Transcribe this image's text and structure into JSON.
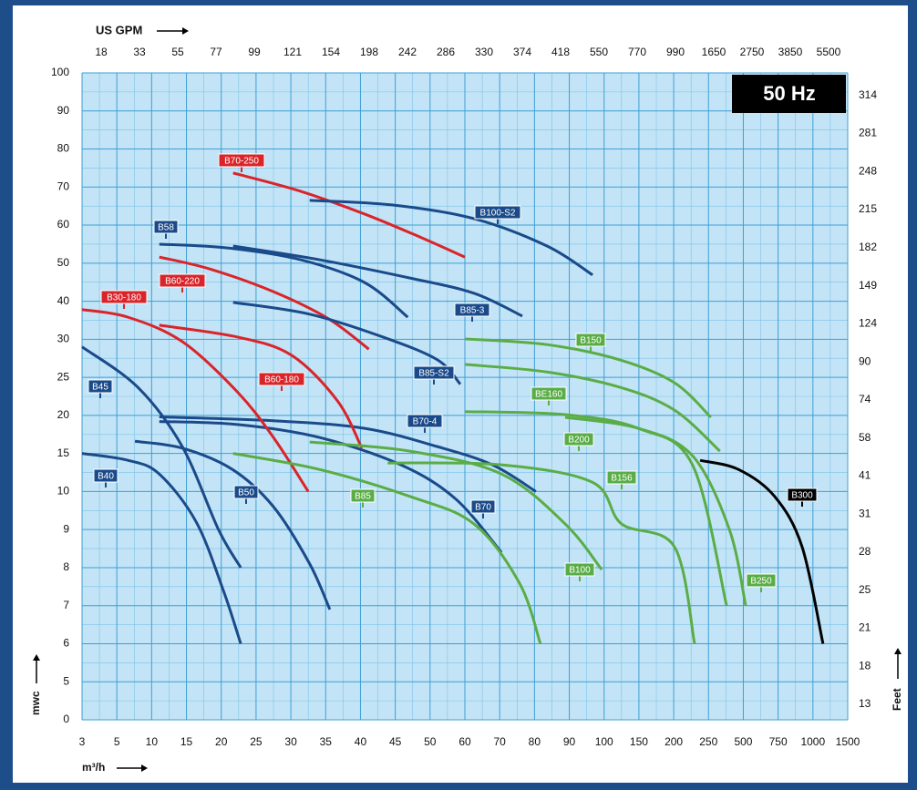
{
  "chart_data": {
    "type": "line",
    "x_label": "m³/h",
    "y_label": "mwc",
    "x2_label": "US GPM",
    "y2_label": "Feet",
    "badge": "50 Hz",
    "xlim": [
      3,
      1500
    ],
    "xticks": [
      3,
      5,
      10,
      15,
      20,
      25,
      30,
      35,
      40,
      45,
      50,
      60,
      70,
      80,
      90,
      100,
      150,
      200,
      250,
      500,
      750,
      1000,
      1500
    ],
    "ylim": [
      0,
      100
    ],
    "yticks": [
      0,
      5,
      6,
      7,
      8,
      9,
      10,
      15,
      20,
      25,
      30,
      40,
      50,
      60,
      70,
      80,
      90,
      100
    ],
    "x2ticks": [
      18,
      33,
      55,
      77,
      99,
      121,
      154,
      198,
      242,
      286,
      330,
      374,
      418,
      550,
      770,
      990,
      1650,
      2750,
      3850,
      5500
    ],
    "y2ticks": [
      13,
      18,
      21,
      25,
      28,
      31,
      41,
      58,
      74,
      90,
      124,
      149,
      182,
      215,
      248,
      281,
      314
    ],
    "grid": true,
    "series": [
      {
        "name": "B45",
        "color": "#1a4a8a",
        "x": [
          3,
          8,
          14.4,
          19.6,
          22.8
        ],
        "values": [
          29,
          23.7,
          15.9,
          9,
          8
        ]
      },
      {
        "name": "B40",
        "color": "#1a4a8a",
        "x": [
          3,
          6.6,
          11.1,
          16.4,
          20.3,
          22.8
        ],
        "values": [
          15,
          14.1,
          12.3,
          9.2,
          7.4,
          6
        ]
      },
      {
        "name": "B50",
        "color": "#1a4a8a",
        "x": [
          7.6,
          14.4,
          21.6,
          27.5,
          32.7,
          35.6
        ],
        "values": [
          16.6,
          15.7,
          12.9,
          9.6,
          8.1,
          6.9
        ]
      },
      {
        "name": "B70-4",
        "color": "#1a4a8a",
        "x": [
          11.1,
          27.5,
          40.6,
          52.1,
          67.9,
          80.4
        ],
        "values": [
          19.8,
          19.3,
          18.3,
          15.9,
          13.5,
          10
        ]
      },
      {
        "name": "B70",
        "color": "#1a4a8a",
        "x": [
          11.1,
          22.3,
          34.1,
          45.8,
          57.4,
          70.5
        ],
        "values": [
          19.2,
          18.8,
          17.1,
          13.5,
          9.8,
          8.4
        ]
      },
      {
        "name": "B60-180",
        "color": "#d9252a",
        "x": [
          11.1,
          22.3,
          30.1,
          36.7,
          40.2
        ],
        "values": [
          33.7,
          30.6,
          27.9,
          21.9,
          15.7
        ]
      },
      {
        "name": "B30-180",
        "color": "#d9252a",
        "x": [
          3,
          6.6,
          14.4,
          22.3,
          27.5,
          32.5
        ],
        "values": [
          37.8,
          35.8,
          29.7,
          23.1,
          17.1,
          10
        ]
      },
      {
        "name": "B60-220",
        "color": "#d9252a",
        "x": [
          11.1,
          18.3,
          27.5,
          35.4,
          41.2
        ],
        "values": [
          51.6,
          48.5,
          42.5,
          35.4,
          28.7
        ]
      },
      {
        "name": "B58",
        "color": "#1a4a8a",
        "x": [
          11.1,
          20.9,
          31.4,
          40.6,
          46.8
        ],
        "values": [
          55,
          54,
          50.9,
          44.9,
          35.8
        ]
      },
      {
        "name": "B70-250",
        "color": "#d9252a",
        "x": [
          21.7,
          31.4,
          40.6,
          48.5,
          60
        ],
        "values": [
          73.7,
          68.9,
          62.9,
          56.9,
          51.6
        ]
      },
      {
        "name": "B100-S2",
        "color": "#1a4a8a",
        "x": [
          32.7,
          44.5,
          62.6,
          83.6,
          96.7
        ],
        "values": [
          66.5,
          65.3,
          61.7,
          54.5,
          46.9
        ]
      },
      {
        "name": "B85-3",
        "color": "#1a4a8a",
        "x": [
          21.7,
          34.1,
          47.1,
          62.6,
          76.5
        ],
        "values": [
          54.5,
          50.9,
          46.1,
          42.1,
          36.1
        ]
      },
      {
        "name": "B85-S2",
        "color": "#1a4a8a",
        "x": [
          21.7,
          32.7,
          43.2,
          52.1,
          58.7
        ],
        "values": [
          39.7,
          36.6,
          30.6,
          27.3,
          24.1
        ]
      },
      {
        "name": "B150",
        "color": "#5aad46",
        "x": [
          60,
          83.6,
          122.5,
          201,
          267
        ],
        "values": [
          30.1,
          29.3,
          27.3,
          24.3,
          19.75
        ]
      },
      {
        "name": "BE160",
        "color": "#5aad46",
        "x": [
          60,
          83.6,
          122.5,
          201,
          332
        ],
        "values": [
          26.7,
          25.7,
          23.7,
          20.7,
          15.3
        ]
      },
      {
        "name": "B200",
        "color": "#5aad46",
        "x": [
          60,
          88.8,
          149,
          227,
          380
        ],
        "values": [
          20.5,
          20.1,
          18.3,
          13.5,
          7
        ]
      },
      {
        "name": "B250",
        "color": "#5aad46",
        "x": [
          88.8,
          149,
          227,
          400,
          517
        ],
        "values": [
          19.75,
          18.3,
          14.7,
          9,
          7
        ]
      },
      {
        "name": "B156",
        "color": "#5aad46",
        "x": [
          43.9,
          70.5,
          96.7,
          125,
          201,
          230
        ],
        "values": [
          13.75,
          13.5,
          11.2,
          9.15,
          8.55,
          6
        ]
      },
      {
        "name": "B100",
        "color": "#5aad46",
        "x": [
          32.7,
          47.1,
          70.5,
          88.8,
          99.3
        ],
        "values": [
          16.5,
          15.3,
          12.3,
          9.15,
          7.95
        ]
      },
      {
        "name": "B85",
        "color": "#5aad46",
        "x": [
          21.7,
          34.1,
          47.1,
          62.6,
          75.7,
          81.7
        ],
        "values": [
          15,
          12.9,
          9.87,
          9.15,
          7.59,
          6
        ]
      },
      {
        "name": "B300",
        "color": "#000000",
        "x": [
          238,
          465,
          725,
          922,
          1145
        ],
        "values": [
          14.1,
          12.9,
          9.87,
          8.55,
          6
        ]
      }
    ]
  }
}
